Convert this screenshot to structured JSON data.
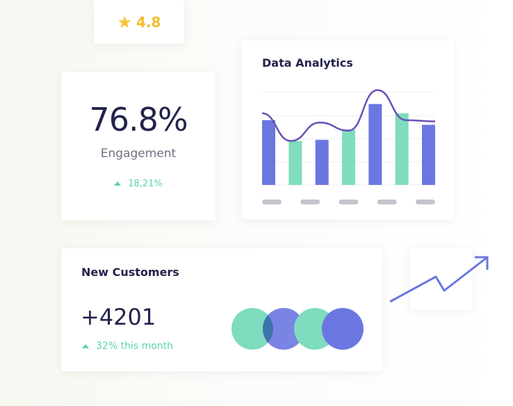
{
  "rating": {
    "icon": "star-icon",
    "value": "4.8"
  },
  "engagement": {
    "value": "76.8%",
    "label": "Engagement",
    "change": "18,21%",
    "trend_icon": "triangle-up-icon"
  },
  "analytics": {
    "title": "Data Analytics"
  },
  "new_customers": {
    "title": "New Customers",
    "value": "+4201",
    "change": "32% this month",
    "trend_icon": "triangle-up-icon"
  },
  "trend": {
    "icon": "trending-up-arrow-icon"
  },
  "colors": {
    "blue": "#6b77e0",
    "green": "#7fdcbf",
    "line": "#6a4fb8",
    "text": "#22244a",
    "accent": "#5bd3ae"
  },
  "chart_data": {
    "type": "bar",
    "title": "Data Analytics",
    "ylim": [
      0,
      4
    ],
    "grid": true,
    "values": [
      2.8,
      1.9,
      1.95,
      2.4,
      3.5,
      3.1,
      2.6
    ],
    "bar_colors": [
      "blue",
      "green",
      "blue",
      "green",
      "blue",
      "green",
      "blue"
    ],
    "line": {
      "type": "line",
      "smooth": true,
      "values": [
        3.1,
        1.9,
        2.7,
        2.35,
        4.1,
        2.8,
        2.75
      ]
    },
    "x_tick_placeholders": 5
  }
}
